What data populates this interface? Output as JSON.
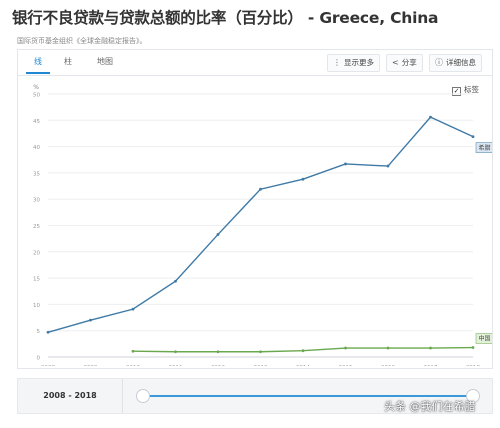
{
  "page": {
    "title": "银行不良贷款与贷款总额的比率（百分比） - Greece, China",
    "source": "国际货币基金组织《全球金融稳定报告》。"
  },
  "tabs": [
    {
      "label": "线",
      "active": true
    },
    {
      "label": "柱",
      "active": false
    },
    {
      "label": "地图",
      "active": false
    }
  ],
  "toolbar": {
    "show_more": "显示更多",
    "share": "分享",
    "details": "详细信息"
  },
  "labels_toggle": {
    "label": "标签",
    "checked": true
  },
  "chart_data": {
    "type": "line",
    "title": "",
    "xlabel": "",
    "ylabel": "%",
    "x": [
      2008,
      2009,
      2010,
      2011,
      2012,
      2013,
      2014,
      2015,
      2016,
      2017,
      2018
    ],
    "x_ticks": [
      "2008",
      "2009",
      "2010",
      "2011",
      "2012",
      "2013",
      "2014",
      "2015",
      "2016",
      "2017",
      "2018"
    ],
    "ylim": [
      0,
      50
    ],
    "y_ticks": [
      "0",
      "5",
      "10",
      "15",
      "20",
      "25",
      "30",
      "35",
      "40",
      "45",
      "50"
    ],
    "grid": true,
    "series": [
      {
        "name": "希腊",
        "color": "#3f7aa6",
        "values": [
          4.7,
          7.0,
          9.1,
          14.4,
          23.3,
          31.9,
          33.8,
          36.7,
          36.3,
          45.6,
          41.9
        ]
      },
      {
        "name": "中国",
        "color": "#6aa84f",
        "values": [
          null,
          null,
          1.1,
          1.0,
          1.0,
          1.0,
          1.2,
          1.7,
          1.7,
          1.7,
          1.8
        ]
      }
    ]
  },
  "footer": {
    "range_label": "2008 - 2018"
  },
  "watermark": "头条 @我们在希腊"
}
